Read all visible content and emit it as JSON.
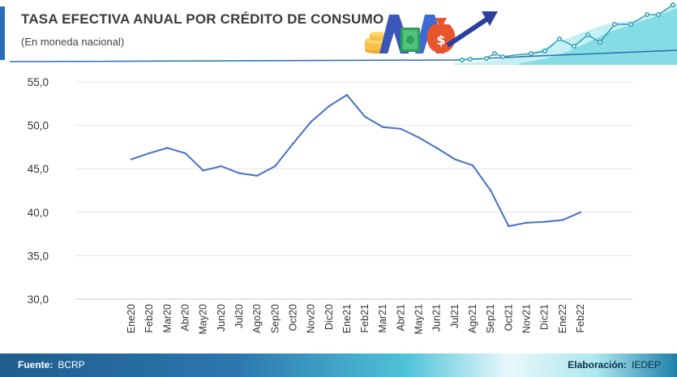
{
  "header": {
    "title": "TASA EFECTIVA ANUAL POR CRÉDITO DE CONSUMO",
    "subtitle": "(En moneda nacional)"
  },
  "footer": {
    "source_label": "Fuente:",
    "source_value": "BCRP",
    "credit_label": "Elaboración:",
    "credit_value": "IEDEP"
  },
  "colors": {
    "line": "#4472c4",
    "accent": "#2a6db5",
    "teal": "#2bb7c9"
  },
  "chart_data": {
    "type": "line",
    "title": "TASA EFECTIVA ANUAL POR CRÉDITO DE CONSUMO",
    "subtitle": "(En moneda nacional)",
    "xlabel": "",
    "ylabel": "",
    "ylim": [
      30,
      55
    ],
    "yticks": [
      "30,0",
      "35,0",
      "40,0",
      "45,0",
      "50,0",
      "55,0"
    ],
    "grid": true,
    "categories": [
      "Ene20",
      "Feb20",
      "Mar20",
      "Abr20",
      "May20",
      "Jun20",
      "Jul20",
      "Ago20",
      "Sep20",
      "Oct20",
      "Nov20",
      "Dic20",
      "Ene21",
      "Feb21",
      "Mar21",
      "Abr21",
      "May21",
      "Jun21",
      "Jul21",
      "Ago21",
      "Sep21",
      "Oct21",
      "Nov21",
      "Dic21",
      "Ene22",
      "Feb22"
    ],
    "series": [
      {
        "values": [
          46.1,
          46.8,
          47.4,
          46.8,
          44.8,
          45.3,
          44.5,
          44.2,
          45.3,
          47.9,
          50.4,
          52.2,
          53.5,
          51.0,
          49.8,
          49.6,
          48.6,
          47.4,
          46.1,
          45.4,
          42.5,
          38.4,
          38.8,
          38.9,
          39.1,
          40.0
        ]
      }
    ]
  }
}
